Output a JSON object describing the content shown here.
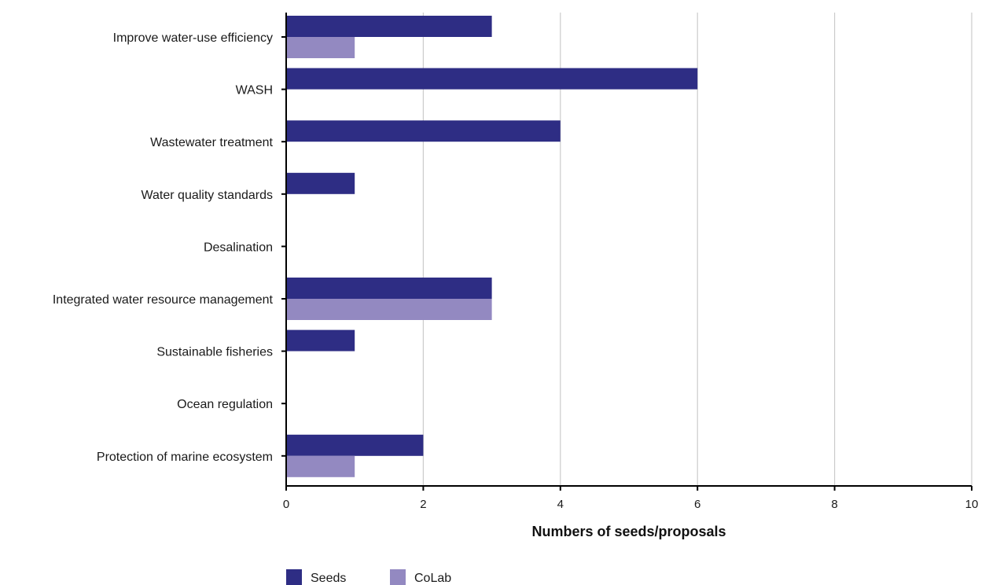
{
  "chart_data": {
    "type": "bar",
    "orientation": "horizontal",
    "categories": [
      "Improve water-use efficiency",
      "WASH",
      "Wastewater treatment",
      "Water quality standards",
      "Desalination",
      "Integrated water resource management",
      "Sustainable fisheries",
      "Ocean regulation",
      "Protection of marine ecosystem"
    ],
    "series": [
      {
        "name": "Seeds",
        "color": "#2e2d84",
        "values": [
          3,
          6,
          4,
          1,
          0,
          3,
          1,
          0,
          2
        ]
      },
      {
        "name": "CoLab",
        "color": "#9389c1",
        "values": [
          1,
          0,
          0,
          0,
          0,
          3,
          0,
          0,
          1
        ]
      }
    ],
    "title": "",
    "xlabel": "Numbers of seeds/proposals",
    "ylabel": "",
    "xlim": [
      0,
      10
    ],
    "xticks": [
      "0",
      "2",
      "4",
      "6",
      "8",
      "10"
    ],
    "grid": "vertical",
    "legend": "bottom-left"
  }
}
